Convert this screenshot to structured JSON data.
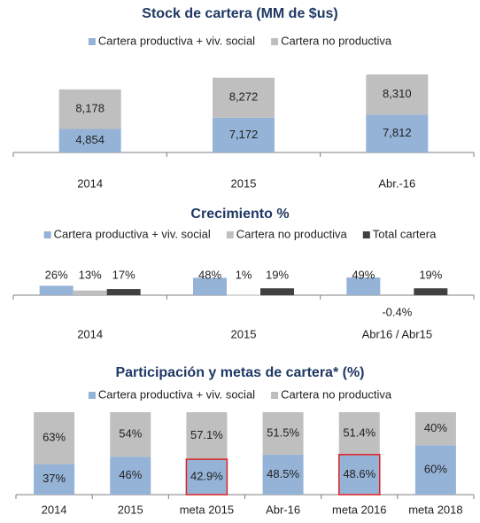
{
  "chart_data": [
    {
      "type": "stacked",
      "title": "Stock de cartera (MM de $us)",
      "categories": [
        "2014",
        "2015",
        "Abr.-16"
      ],
      "series": [
        {
          "name": "Cartera productiva + viv. social",
          "color": "#95b3d7",
          "values": [
            4854,
            7172,
            7812
          ],
          "value_labels": [
            "4,854",
            "7,172",
            "7,812"
          ]
        },
        {
          "name": "Cartera no productiva",
          "color": "#bfbfbf",
          "values": [
            8178,
            8272,
            8310
          ],
          "value_labels": [
            "8,178",
            "8,272",
            "8,310"
          ]
        }
      ]
    },
    {
      "type": "bar",
      "title": "Crecimiento %",
      "categories": [
        "2014",
        "2015",
        "Abr16 / Abr15"
      ],
      "series": [
        {
          "name": "Cartera productiva + viv. social",
          "color": "#95b3d7",
          "values": [
            26,
            48,
            49
          ],
          "value_labels": [
            "26%",
            "48%",
            "49%"
          ]
        },
        {
          "name": "Cartera no productiva",
          "color": "#bfbfbf",
          "values": [
            13,
            1,
            -0.4
          ],
          "value_labels": [
            "13%",
            "1%",
            "-0.4%"
          ]
        },
        {
          "name": "Total cartera",
          "color": "#404040",
          "values": [
            17,
            19,
            19
          ],
          "value_labels": [
            "17%",
            "19%",
            "19%"
          ]
        }
      ]
    },
    {
      "type": "stacked",
      "title": "Participación y metas de cartera* (%)",
      "categories": [
        "2014",
        "2015",
        "meta 2015",
        "Abr-16",
        "meta 2016",
        "meta 2018"
      ],
      "series": [
        {
          "name": "Cartera productiva + viv. social",
          "color": "#95b3d7",
          "values": [
            37,
            46,
            42.9,
            48.5,
            48.6,
            60
          ],
          "value_labels": [
            "37%",
            "46%",
            "42.9%",
            "48.5%",
            "48.6%",
            "60%"
          ]
        },
        {
          "name": "Cartera no productiva",
          "color": "#bfbfbf",
          "values": [
            63,
            54,
            57.1,
            51.5,
            51.4,
            40
          ],
          "value_labels": [
            "63%",
            "54%",
            "57.1%",
            "51.5%",
            "51.4%",
            "40%"
          ]
        }
      ],
      "highlight": [
        2,
        4
      ],
      "highlight_color": "#e02020"
    }
  ]
}
